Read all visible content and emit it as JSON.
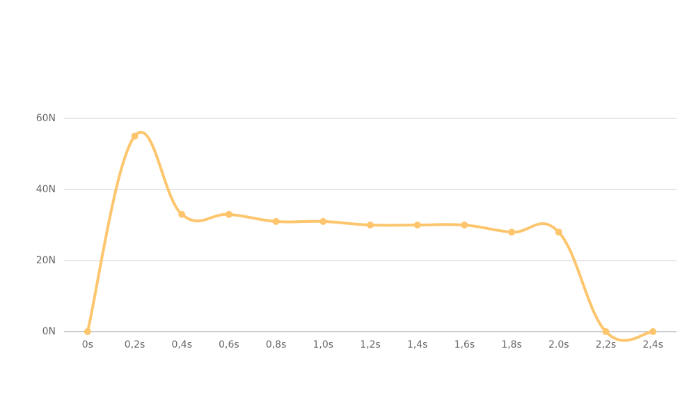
{
  "chart_data": {
    "type": "line",
    "categories": [
      "0s",
      "0,2s",
      "0,4s",
      "0,6s",
      "0,8s",
      "1,0s",
      "1,2s",
      "1,4s",
      "1,6s",
      "1,8s",
      "2.0s",
      "2,2s",
      "2,4s"
    ],
    "values": [
      0,
      55,
      33,
      33,
      31,
      31,
      30,
      30,
      30,
      28,
      28,
      0,
      0
    ],
    "color": "#fdc66e",
    "ylim": [
      0,
      60
    ],
    "yticks": [
      {
        "value": 0,
        "label": "0N"
      },
      {
        "value": 20,
        "label": "20N"
      },
      {
        "value": 40,
        "label": "40N"
      },
      {
        "value": 60,
        "label": "60N"
      }
    ],
    "grid": true
  }
}
